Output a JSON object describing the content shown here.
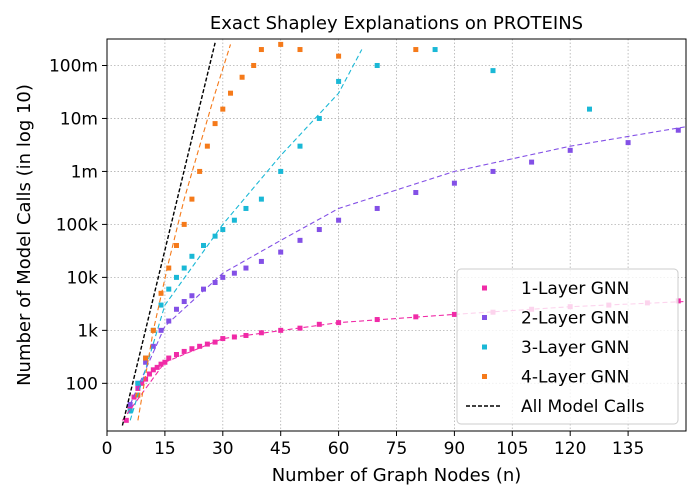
{
  "chart_data": {
    "type": "scatter",
    "title": "Exact Shapley Explanations on PROTEINS",
    "xlabel": "Number of Graph Nodes (n)",
    "ylabel": "Number of Model Calls (in log 10)",
    "x_scale": "linear",
    "y_scale": "log10",
    "xlim": [
      0,
      150
    ],
    "ylim_log10": [
      1.1,
      8.5
    ],
    "x_ticks": [
      0,
      15,
      30,
      45,
      60,
      75,
      90,
      105,
      120,
      135
    ],
    "y_ticks": [
      {
        "value": 100,
        "label": "100"
      },
      {
        "value": 1000,
        "label": "1k"
      },
      {
        "value": 10000,
        "label": "10k"
      },
      {
        "value": 100000,
        "label": "100k"
      },
      {
        "value": 1000000,
        "label": "1m"
      },
      {
        "value": 10000000,
        "label": "10m"
      },
      {
        "value": 100000000,
        "label": "100m"
      }
    ],
    "grid": true,
    "legend_position": "bottom-right",
    "series": [
      {
        "name": "1-Layer GNN",
        "color": "#f02ba7",
        "marker": "square",
        "points": [
          [
            5,
            20
          ],
          [
            6,
            35
          ],
          [
            7,
            55
          ],
          [
            8,
            80
          ],
          [
            9,
            100
          ],
          [
            10,
            120
          ],
          [
            11,
            150
          ],
          [
            12,
            180
          ],
          [
            13,
            200
          ],
          [
            14,
            230
          ],
          [
            15,
            250
          ],
          [
            16,
            300
          ],
          [
            18,
            350
          ],
          [
            20,
            400
          ],
          [
            22,
            450
          ],
          [
            24,
            500
          ],
          [
            26,
            550
          ],
          [
            28,
            600
          ],
          [
            30,
            700
          ],
          [
            33,
            750
          ],
          [
            36,
            800
          ],
          [
            40,
            900
          ],
          [
            45,
            1000
          ],
          [
            50,
            1100
          ],
          [
            55,
            1300
          ],
          [
            60,
            1400
          ],
          [
            70,
            1600
          ],
          [
            80,
            1800
          ],
          [
            90,
            2000
          ],
          [
            100,
            2200
          ],
          [
            110,
            2500
          ],
          [
            120,
            2800
          ],
          [
            130,
            3000
          ],
          [
            140,
            3300
          ],
          [
            148,
            3600
          ]
        ],
        "fit": [
          [
            4,
            20
          ],
          [
            15,
            250
          ],
          [
            30,
            700
          ],
          [
            60,
            1400
          ],
          [
            90,
            2000
          ],
          [
            120,
            2800
          ],
          [
            150,
            3500
          ]
        ]
      },
      {
        "name": "2-Layer GNN",
        "color": "#8350e6",
        "marker": "square",
        "points": [
          [
            6,
            40
          ],
          [
            8,
            100
          ],
          [
            10,
            250
          ],
          [
            12,
            500
          ],
          [
            14,
            1000
          ],
          [
            16,
            1500
          ],
          [
            18,
            2500
          ],
          [
            20,
            3500
          ],
          [
            22,
            4500
          ],
          [
            25,
            6000
          ],
          [
            28,
            8000
          ],
          [
            30,
            10000
          ],
          [
            33,
            12000
          ],
          [
            36,
            15000
          ],
          [
            40,
            20000
          ],
          [
            45,
            30000
          ],
          [
            50,
            50000
          ],
          [
            55,
            80000
          ],
          [
            60,
            120000
          ],
          [
            70,
            200000
          ],
          [
            80,
            400000
          ],
          [
            90,
            600000
          ],
          [
            100,
            1000000
          ],
          [
            110,
            1500000
          ],
          [
            120,
            2500000
          ],
          [
            135,
            3500000
          ],
          [
            148,
            6000000
          ]
        ],
        "fit": [
          [
            6,
            40
          ],
          [
            15,
            1200
          ],
          [
            30,
            12000
          ],
          [
            45,
            50000
          ],
          [
            60,
            200000
          ],
          [
            90,
            1000000
          ],
          [
            120,
            3000000
          ],
          [
            150,
            7000000
          ]
        ]
      },
      {
        "name": "3-Layer GNN",
        "color": "#1ab8d6",
        "marker": "square",
        "points": [
          [
            6,
            30
          ],
          [
            8,
            100
          ],
          [
            10,
            300
          ],
          [
            12,
            1000
          ],
          [
            14,
            3000
          ],
          [
            16,
            6000
          ],
          [
            18,
            10000
          ],
          [
            20,
            15000
          ],
          [
            22,
            25000
          ],
          [
            25,
            40000
          ],
          [
            28,
            60000
          ],
          [
            30,
            80000
          ],
          [
            33,
            120000
          ],
          [
            36,
            200000
          ],
          [
            40,
            300000
          ],
          [
            45,
            1000000
          ],
          [
            50,
            3000000
          ],
          [
            55,
            10000000
          ],
          [
            60,
            50000000
          ],
          [
            70,
            100000000
          ],
          [
            85,
            200000000
          ],
          [
            100,
            80000000
          ],
          [
            125,
            15000000
          ]
        ],
        "fit": [
          [
            6,
            20
          ],
          [
            15,
            3000
          ],
          [
            30,
            100000
          ],
          [
            45,
            2000000
          ],
          [
            60,
            30000000
          ],
          [
            66,
            200000000
          ]
        ]
      },
      {
        "name": "4-Layer GNN",
        "color": "#f57a1a",
        "marker": "square",
        "points": [
          [
            8,
            60
          ],
          [
            10,
            300
          ],
          [
            12,
            1000
          ],
          [
            14,
            5000
          ],
          [
            16,
            15000
          ],
          [
            18,
            40000
          ],
          [
            20,
            100000
          ],
          [
            22,
            300000
          ],
          [
            24,
            1000000
          ],
          [
            26,
            3000000
          ],
          [
            28,
            8000000
          ],
          [
            30,
            15000000
          ],
          [
            32,
            30000000
          ],
          [
            35,
            60000000
          ],
          [
            38,
            100000000
          ],
          [
            40,
            200000000
          ],
          [
            45,
            250000000
          ],
          [
            50,
            200000000
          ],
          [
            60,
            150000000
          ],
          [
            80,
            200000000
          ]
        ],
        "fit": [
          [
            8,
            20
          ],
          [
            12,
            1000
          ],
          [
            16,
            20000
          ],
          [
            20,
            300000
          ],
          [
            24,
            3000000
          ],
          [
            28,
            30000000
          ],
          [
            32,
            250000000
          ]
        ]
      },
      {
        "name": "All Model Calls",
        "color": "#000000",
        "style": "dashed",
        "fit": [
          [
            4,
            16
          ],
          [
            8,
            256
          ],
          [
            12,
            4096
          ],
          [
            16,
            65536
          ],
          [
            20,
            1048576
          ],
          [
            24,
            16777216
          ],
          [
            28,
            268435456
          ]
        ]
      }
    ]
  }
}
